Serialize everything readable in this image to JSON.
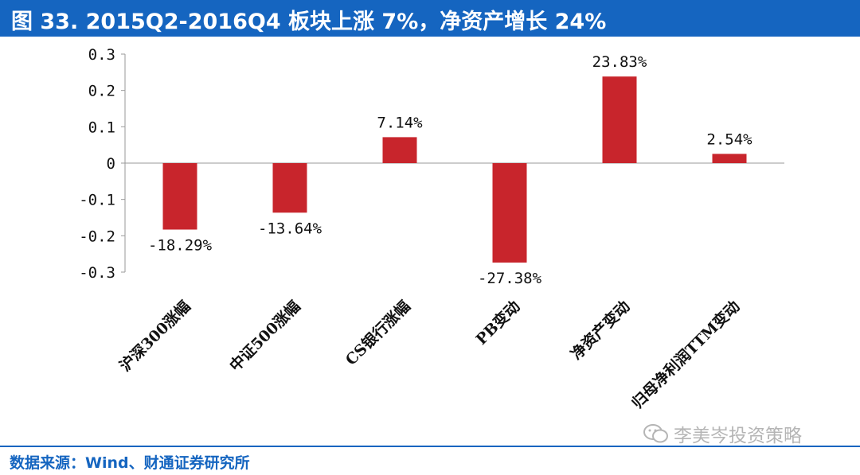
{
  "header": {
    "title": "图 33. 2015Q2-2016Q4 板块上涨 7%，净资产增长 24%"
  },
  "chart_data": {
    "type": "bar",
    "title": "图 33. 2015Q2-2016Q4 板块上涨 7%，净资产增长 24%",
    "categories": [
      "沪深300涨幅",
      "中证500涨幅",
      "CS银行涨幅",
      "PB变动",
      "净资产变动",
      "归母净利润TTM变动"
    ],
    "values": [
      -0.1829,
      -0.1364,
      0.0714,
      -0.2738,
      0.2383,
      0.0254
    ],
    "data_labels": [
      "-18.29%",
      "-13.64%",
      "7.14%",
      "-27.38%",
      "23.83%",
      "2.54%"
    ],
    "ylim": [
      -0.3,
      0.3
    ],
    "yticks": [
      0.3,
      0.2,
      0.1,
      0,
      -0.1,
      -0.2,
      -0.3
    ],
    "ytick_labels": [
      "0.3",
      "0.2",
      "0.1",
      "0",
      "-0.1",
      "-0.2",
      "-0.3"
    ],
    "xlabel": "",
    "ylabel": "",
    "grid": false,
    "bar_color": "#c8252c"
  },
  "footer": {
    "source": "数据来源：Wind、财通证券研究所",
    "watermark": "李美岑投资策略"
  },
  "colors": {
    "header_bg": "#1565c0",
    "bar": "#c8252c"
  }
}
